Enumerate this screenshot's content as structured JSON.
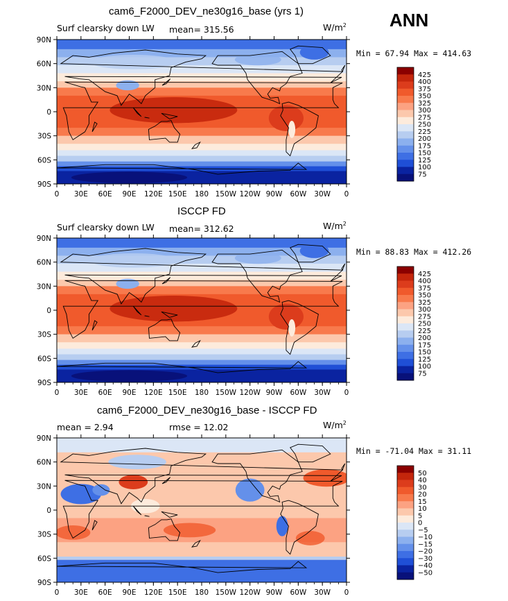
{
  "figure": {
    "season": "ANN",
    "units": "W/m",
    "units_exp": "2"
  },
  "chart_data": [
    {
      "type": "heatmap",
      "title": "cam6_F2000_DEV_ne30g16_base (yrs 1)",
      "left_label": "Surf clearsky down LW",
      "center_label": "mean=  315.56",
      "stats_label": "Min =  67.94 Max = 414.63",
      "min": 67.94,
      "max": 414.63,
      "mean": 315.56,
      "x_ticks": [
        "0",
        "30E",
        "60E",
        "90E",
        "120E",
        "150E",
        "180",
        "150W",
        "120W",
        "90W",
        "60W",
        "30W",
        "0"
      ],
      "y_ticks": [
        "90N",
        "60N",
        "30N",
        "0",
        "30S",
        "60S",
        "90S"
      ],
      "levels": [
        "425",
        "400",
        "375",
        "350",
        "325",
        "300",
        "275",
        "250",
        "225",
        "200",
        "175",
        "150",
        "125",
        "100",
        "75"
      ],
      "colors": [
        "#8b0000",
        "#c4260c",
        "#dc3c1c",
        "#f05a2c",
        "#f87a4c",
        "#fca282",
        "#fcc8ac",
        "#fdebdc",
        "#dbe6f6",
        "#b7cdf0",
        "#8cb0ee",
        "#6490ea",
        "#3e6fe4",
        "#1f4fd6",
        "#0a23a0",
        "#08117a"
      ]
    },
    {
      "type": "heatmap",
      "title": "ISCCP FD",
      "left_label": "Surf clearsky down LW",
      "center_label": "mean=  312.62",
      "stats_label": "Min =  88.83 Max = 412.26",
      "min": 88.83,
      "max": 412.26,
      "mean": 312.62,
      "x_ticks": [
        "0",
        "30E",
        "60E",
        "90E",
        "120E",
        "150E",
        "180",
        "150W",
        "120W",
        "90W",
        "60W",
        "30W",
        "0"
      ],
      "y_ticks": [
        "90N",
        "60N",
        "30N",
        "0",
        "30S",
        "60S",
        "90S"
      ],
      "levels": [
        "425",
        "400",
        "375",
        "350",
        "325",
        "300",
        "275",
        "250",
        "225",
        "200",
        "175",
        "150",
        "125",
        "100",
        "75"
      ],
      "colors": [
        "#8b0000",
        "#c4260c",
        "#dc3c1c",
        "#f05a2c",
        "#f87a4c",
        "#fca282",
        "#fcc8ac",
        "#fdebdc",
        "#dbe6f6",
        "#b7cdf0",
        "#8cb0ee",
        "#6490ea",
        "#3e6fe4",
        "#1f4fd6",
        "#0a23a0",
        "#08117a"
      ]
    },
    {
      "type": "heatmap",
      "title": "cam6_F2000_DEV_ne30g16_base - ISCCP FD",
      "left_label": "mean =    2.94",
      "center_label": "rmse =   12.02",
      "stats_label": "Min = -71.04 Max =  31.11",
      "min": -71.04,
      "max": 31.11,
      "mean": 2.94,
      "rmse": 12.02,
      "x_ticks": [
        "0",
        "30E",
        "60E",
        "90E",
        "120E",
        "150E",
        "180",
        "150W",
        "120W",
        "90W",
        "60W",
        "30W",
        "0"
      ],
      "y_ticks": [
        "90N",
        "60N",
        "30N",
        "0",
        "30S",
        "60S",
        "90S"
      ],
      "levels": [
        "50",
        "40",
        "30",
        "20",
        "15",
        "10",
        "5",
        "0",
        "−5",
        "−10",
        "−15",
        "−20",
        "−30",
        "−40",
        "−50"
      ],
      "colors": [
        "#8b0000",
        "#c4260c",
        "#dc3c1c",
        "#f05a2c",
        "#f87a4c",
        "#fca282",
        "#fcc8ac",
        "#fdebdc",
        "#dbe6f6",
        "#b7cdf0",
        "#8cb0ee",
        "#6490ea",
        "#3e6fe4",
        "#1f4fd6",
        "#0a23a0",
        "#08117a"
      ]
    }
  ]
}
